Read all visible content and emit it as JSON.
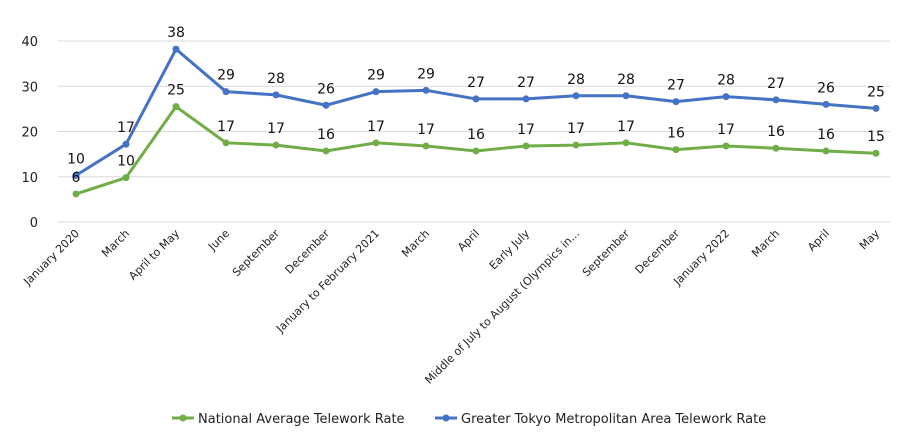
{
  "chart_data": {
    "type": "line",
    "categories": [
      "January 2020",
      "March",
      "April to May",
      "June",
      "September",
      "December",
      "January to February 2021",
      "March",
      "April",
      "Early July",
      "Middle of July to August (Olympics in...",
      "September",
      "December",
      "January 2022",
      "March",
      "April",
      "May"
    ],
    "series": [
      {
        "name": "National Average Telework Rate",
        "color": "#70ad47",
        "values": [
          6,
          10,
          25,
          17,
          17,
          16,
          17,
          17,
          16,
          17,
          17,
          17,
          16,
          17,
          16,
          16,
          15
        ],
        "plot_values": [
          6.2,
          9.8,
          25.5,
          17.5,
          17.0,
          15.7,
          17.5,
          16.8,
          15.7,
          16.8,
          17.0,
          17.5,
          16.0,
          16.8,
          16.3,
          15.7,
          15.2
        ]
      },
      {
        "name": "Greater Tokyo Metropolitan Area Telework Rate",
        "color": "#4472c4",
        "values": [
          10,
          17,
          38,
          29,
          28,
          26,
          29,
          29,
          27,
          27,
          28,
          28,
          27,
          28,
          27,
          26,
          25
        ],
        "plot_values": [
          10.3,
          17.2,
          38.2,
          28.8,
          28.1,
          25.8,
          28.8,
          29.1,
          27.2,
          27.2,
          27.9,
          27.9,
          26.6,
          27.7,
          27.0,
          26.0,
          25.1
        ]
      }
    ],
    "ylim": [
      0,
      40
    ],
    "yticks": [
      0,
      10,
      20,
      30,
      40
    ],
    "grid": true,
    "legend": "bottom"
  }
}
